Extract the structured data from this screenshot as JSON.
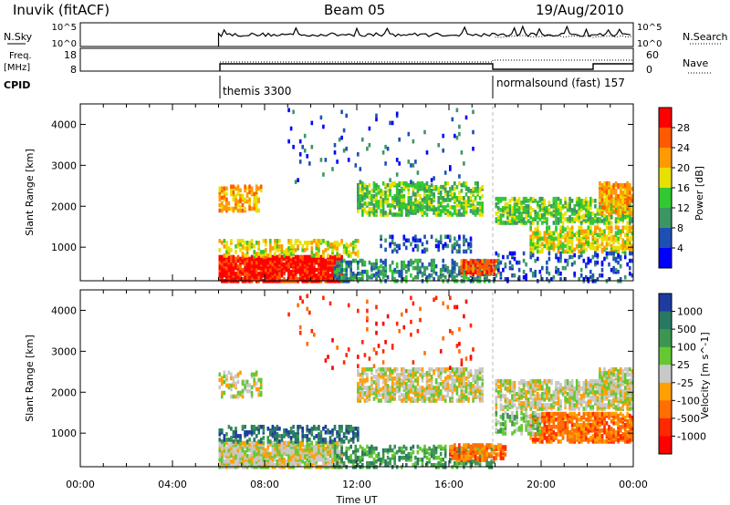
{
  "header": {
    "station": "Inuvik (fitACF)",
    "beam": "Beam 05",
    "date": "19/Aug/2010"
  },
  "status_panels": {
    "nsky_label": "N.Sky",
    "nsky_ticks": [
      "10^5",
      "10^0"
    ],
    "nsearch_label": "N.Search",
    "freq_label_1": "Freq.",
    "freq_label_2": "[MHz]",
    "freq_ticks": [
      "18",
      "8"
    ],
    "nave_label": "Nave",
    "nave_ticks": [
      "60",
      "0"
    ],
    "cpid_label": "CPID",
    "cpid_modes": [
      {
        "label": "themis 3300",
        "start_hour": 6
      },
      {
        "label": "normalsound (fast) 157",
        "start_hour": 18
      }
    ]
  },
  "chart_data": [
    {
      "type": "heatmap",
      "name": "Power",
      "ylabel": "Slant Range [km]",
      "xlabel": "",
      "xlim_hours": [
        0,
        24
      ],
      "ylim": [
        180,
        4500
      ],
      "yticks": [
        1000,
        2000,
        3000,
        4000
      ],
      "colorbar": {
        "label": "Power [dB]",
        "ticks": [
          "28",
          "24",
          "20",
          "16",
          "12",
          "8",
          "4"
        ],
        "colors": [
          "#ff0000",
          "#ff5a00",
          "#ff9a00",
          "#e8e000",
          "#32c832",
          "#3c9664",
          "#1e50b4",
          "#0000ff"
        ]
      },
      "regions": [
        {
          "t": [
            6.0,
            11.3
          ],
          "r": [
            180,
            800
          ],
          "level": 0,
          "density": 0.85
        },
        {
          "t": [
            6.0,
            12.0
          ],
          "r": [
            800,
            1200
          ],
          "level": 3,
          "density": 0.4
        },
        {
          "t": [
            6.0,
            7.8
          ],
          "r": [
            1900,
            2500
          ],
          "level": 2,
          "density": 0.45
        },
        {
          "t": [
            11.0,
            18.0
          ],
          "r": [
            180,
            700
          ],
          "level": 5,
          "density": 0.4
        },
        {
          "t": [
            16.5,
            18.2
          ],
          "r": [
            350,
            700
          ],
          "level": 1,
          "density": 0.6
        },
        {
          "t": [
            12.0,
            17.5
          ],
          "r": [
            1800,
            2600
          ],
          "level": 4,
          "density": 0.5
        },
        {
          "t": [
            13.0,
            17.0
          ],
          "r": [
            900,
            1300
          ],
          "level": 6,
          "density": 0.25
        },
        {
          "t": [
            18.0,
            24.0
          ],
          "r": [
            1600,
            2200
          ],
          "level": 4,
          "density": 0.55
        },
        {
          "t": [
            19.5,
            24.0
          ],
          "r": [
            900,
            1500
          ],
          "level": 3,
          "density": 0.55
        },
        {
          "t": [
            22.5,
            24.0
          ],
          "r": [
            1800,
            2600
          ],
          "level": 2,
          "density": 0.6
        },
        {
          "t": [
            18.0,
            24.0
          ],
          "r": [
            180,
            900
          ],
          "level": 6,
          "density": 0.2
        },
        {
          "t": [
            9.0,
            17.0
          ],
          "r": [
            2600,
            4400
          ],
          "level": 6,
          "density": 0.03
        }
      ]
    },
    {
      "type": "heatmap",
      "name": "Velocity",
      "ylabel": "Slant Range [km]",
      "xlabel": "Time UT",
      "xlim_hours": [
        0,
        24
      ],
      "ylim": [
        180,
        4500
      ],
      "yticks": [
        1000,
        2000,
        3000,
        4000
      ],
      "xticks": [
        "00:00",
        "04:00",
        "08:00",
        "12:00",
        "16:00",
        "20:00",
        "00:00"
      ],
      "colorbar": {
        "label": "Velocity [m s^-1]",
        "ticks": [
          "1000",
          "500",
          "100",
          "25",
          "-25",
          "-100",
          "-500",
          "-1000"
        ],
        "colors": [
          "#1e3ca0",
          "#287864",
          "#3c9650",
          "#64c832",
          "#c8c8c8",
          "#ffa000",
          "#ff6e00",
          "#ff2800",
          "#ff0000"
        ]
      },
      "regions": [
        {
          "t": [
            6.0,
            11.3
          ],
          "r": [
            180,
            800
          ],
          "level": 4,
          "density": 0.8
        },
        {
          "t": [
            6.0,
            12.0
          ],
          "r": [
            800,
            1200
          ],
          "level": 1,
          "density": 0.35
        },
        {
          "t": [
            6.0,
            7.8
          ],
          "r": [
            1900,
            2500
          ],
          "level": 4,
          "density": 0.4
        },
        {
          "t": [
            11.0,
            18.0
          ],
          "r": [
            180,
            700
          ],
          "level": 2,
          "density": 0.35
        },
        {
          "t": [
            16.0,
            18.5
          ],
          "r": [
            350,
            750
          ],
          "level": 6,
          "density": 0.6
        },
        {
          "t": [
            12.0,
            17.5
          ],
          "r": [
            1800,
            2600
          ],
          "level": 4,
          "density": 0.55
        },
        {
          "t": [
            18.0,
            24.0
          ],
          "r": [
            1600,
            2300
          ],
          "level": 4,
          "density": 0.55
        },
        {
          "t": [
            19.5,
            24.0
          ],
          "r": [
            800,
            1500
          ],
          "level": 6,
          "density": 0.6
        },
        {
          "t": [
            18.0,
            20.0
          ],
          "r": [
            1000,
            1500
          ],
          "level": 3,
          "density": 0.4
        },
        {
          "t": [
            22.5,
            24.0
          ],
          "r": [
            1800,
            2600
          ],
          "level": 4,
          "density": 0.6
        },
        {
          "t": [
            9.0,
            17.0
          ],
          "r": [
            2600,
            4400
          ],
          "level": 7,
          "density": 0.03
        }
      ]
    }
  ]
}
